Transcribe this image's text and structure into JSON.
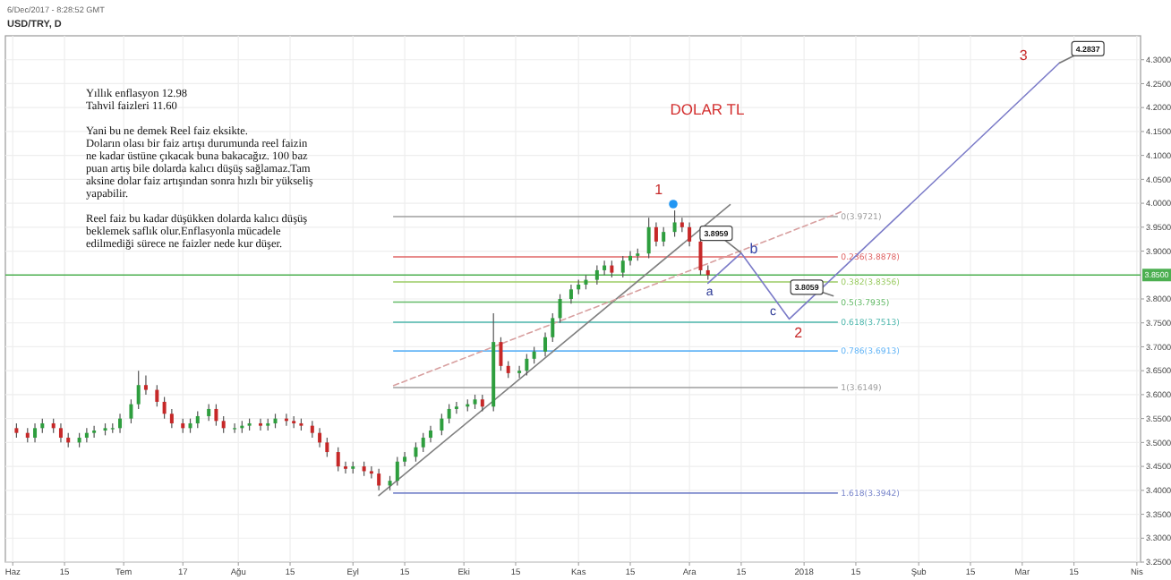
{
  "chart_data": {
    "type": "candlestick",
    "title": "DOLAR TL",
    "subtitle": "USD/TRY, D",
    "x": [
      "2017-06-02",
      "2017-06-05",
      "2017-06-07",
      "2017-06-09",
      "2017-06-12",
      "2017-06-14",
      "2017-06-16",
      "2017-06-19",
      "2017-06-21",
      "2017-06-23",
      "2017-06-26",
      "2017-06-28",
      "2017-06-30",
      "2017-07-03",
      "2017-07-05",
      "2017-07-07",
      "2017-07-10",
      "2017-07-12",
      "2017-07-14",
      "2017-07-17",
      "2017-07-19",
      "2017-07-21",
      "2017-07-24",
      "2017-07-26",
      "2017-07-28",
      "2017-07-31",
      "2017-08-02",
      "2017-08-04",
      "2017-08-07",
      "2017-08-09",
      "2017-08-11",
      "2017-08-14",
      "2017-08-16",
      "2017-08-18",
      "2017-08-21",
      "2017-08-23",
      "2017-08-25",
      "2017-08-28",
      "2017-08-30",
      "2017-09-01",
      "2017-09-04",
      "2017-09-06",
      "2017-09-08",
      "2017-09-11",
      "2017-09-13",
      "2017-09-15",
      "2017-09-18",
      "2017-09-20",
      "2017-09-22",
      "2017-09-25",
      "2017-09-27",
      "2017-09-29",
      "2017-10-02",
      "2017-10-04",
      "2017-10-06",
      "2017-10-09",
      "2017-10-11",
      "2017-10-13",
      "2017-10-16",
      "2017-10-18",
      "2017-10-20",
      "2017-10-23",
      "2017-10-25",
      "2017-10-27",
      "2017-10-30",
      "2017-11-01",
      "2017-11-03",
      "2017-11-06",
      "2017-11-08",
      "2017-11-10",
      "2017-11-13",
      "2017-11-15",
      "2017-11-17",
      "2017-11-20",
      "2017-11-22",
      "2017-11-24",
      "2017-11-27",
      "2017-11-29",
      "2017-12-01",
      "2017-12-04",
      "2017-12-06"
    ],
    "ohlc": [
      [
        3.53,
        3.54,
        3.51,
        3.52
      ],
      [
        3.52,
        3.53,
        3.5,
        3.51
      ],
      [
        3.51,
        3.54,
        3.5,
        3.53
      ],
      [
        3.53,
        3.55,
        3.52,
        3.54
      ],
      [
        3.54,
        3.55,
        3.52,
        3.53
      ],
      [
        3.53,
        3.54,
        3.5,
        3.51
      ],
      [
        3.51,
        3.52,
        3.49,
        3.5
      ],
      [
        3.5,
        3.52,
        3.49,
        3.51
      ],
      [
        3.51,
        3.53,
        3.5,
        3.52
      ],
      [
        3.52,
        3.535,
        3.51,
        3.525
      ],
      [
        3.525,
        3.54,
        3.515,
        3.53
      ],
      [
        3.53,
        3.54,
        3.52,
        3.53
      ],
      [
        3.53,
        3.56,
        3.52,
        3.55
      ],
      [
        3.55,
        3.59,
        3.54,
        3.58
      ],
      [
        3.58,
        3.65,
        3.57,
        3.62
      ],
      [
        3.62,
        3.64,
        3.6,
        3.61
      ],
      [
        3.61,
        3.62,
        3.575,
        3.585
      ],
      [
        3.585,
        3.595,
        3.55,
        3.56
      ],
      [
        3.56,
        3.57,
        3.53,
        3.54
      ],
      [
        3.54,
        3.55,
        3.52,
        3.53
      ],
      [
        3.53,
        3.55,
        3.52,
        3.54
      ],
      [
        3.54,
        3.565,
        3.53,
        3.555
      ],
      [
        3.555,
        3.58,
        3.545,
        3.57
      ],
      [
        3.57,
        3.58,
        3.535,
        3.545
      ],
      [
        3.545,
        3.555,
        3.52,
        3.53
      ],
      [
        3.53,
        3.54,
        3.52,
        3.53
      ],
      [
        3.53,
        3.545,
        3.52,
        3.535
      ],
      [
        3.535,
        3.55,
        3.525,
        3.54
      ],
      [
        3.54,
        3.55,
        3.525,
        3.535
      ],
      [
        3.535,
        3.55,
        3.525,
        3.54
      ],
      [
        3.54,
        3.56,
        3.53,
        3.55
      ],
      [
        3.55,
        3.56,
        3.535,
        3.545
      ],
      [
        3.545,
        3.555,
        3.53,
        3.54
      ],
      [
        3.54,
        3.55,
        3.525,
        3.535
      ],
      [
        3.535,
        3.545,
        3.51,
        3.52
      ],
      [
        3.52,
        3.53,
        3.49,
        3.5
      ],
      [
        3.5,
        3.51,
        3.47,
        3.48
      ],
      [
        3.48,
        3.49,
        3.44,
        3.45
      ],
      [
        3.45,
        3.46,
        3.435,
        3.445
      ],
      [
        3.445,
        3.46,
        3.435,
        3.45
      ],
      [
        3.45,
        3.46,
        3.43,
        3.44
      ],
      [
        3.44,
        3.45,
        3.425,
        3.435
      ],
      [
        3.435,
        3.445,
        3.4,
        3.41
      ],
      [
        3.41,
        3.43,
        3.4,
        3.42
      ],
      [
        3.42,
        3.47,
        3.41,
        3.46
      ],
      [
        3.46,
        3.48,
        3.45,
        3.47
      ],
      [
        3.47,
        3.5,
        3.46,
        3.49
      ],
      [
        3.49,
        3.52,
        3.48,
        3.51
      ],
      [
        3.51,
        3.535,
        3.5,
        3.525
      ],
      [
        3.525,
        3.56,
        3.515,
        3.55
      ],
      [
        3.55,
        3.58,
        3.54,
        3.57
      ],
      [
        3.57,
        3.585,
        3.56,
        3.575
      ],
      [
        3.575,
        3.59,
        3.565,
        3.58
      ],
      [
        3.58,
        3.6,
        3.57,
        3.59
      ],
      [
        3.59,
        3.6,
        3.565,
        3.575
      ],
      [
        3.575,
        3.77,
        3.565,
        3.71
      ],
      [
        3.71,
        3.72,
        3.65,
        3.66
      ],
      [
        3.66,
        3.67,
        3.635,
        3.645
      ],
      [
        3.645,
        3.66,
        3.635,
        3.65
      ],
      [
        3.65,
        3.685,
        3.64,
        3.675
      ],
      [
        3.675,
        3.7,
        3.665,
        3.69
      ],
      [
        3.69,
        3.73,
        3.68,
        3.72
      ],
      [
        3.72,
        3.77,
        3.71,
        3.76
      ],
      [
        3.76,
        3.81,
        3.75,
        3.8
      ],
      [
        3.8,
        3.83,
        3.79,
        3.82
      ],
      [
        3.82,
        3.84,
        3.81,
        3.83
      ],
      [
        3.83,
        3.85,
        3.82,
        3.84
      ],
      [
        3.84,
        3.87,
        3.83,
        3.86
      ],
      [
        3.86,
        3.88,
        3.85,
        3.87
      ],
      [
        3.87,
        3.88,
        3.845,
        3.855
      ],
      [
        3.855,
        3.89,
        3.845,
        3.88
      ],
      [
        3.88,
        3.9,
        3.87,
        3.89
      ],
      [
        3.89,
        3.905,
        3.88,
        3.895
      ],
      [
        3.895,
        3.97,
        3.885,
        3.95
      ],
      [
        3.95,
        3.96,
        3.91,
        3.92
      ],
      [
        3.92,
        3.95,
        3.91,
        3.94
      ],
      [
        3.94,
        3.985,
        3.93,
        3.96
      ],
      [
        3.96,
        3.97,
        3.94,
        3.95
      ],
      [
        3.95,
        3.96,
        3.91,
        3.92
      ],
      [
        3.92,
        3.93,
        3.85,
        3.86
      ],
      [
        3.86,
        3.87,
        3.84,
        3.85
      ]
    ],
    "series": [
      {
        "type": "line",
        "name": "0(3.9721)",
        "color": "#9e9e9e",
        "x": [
          "2017-09-12",
          "2018-01-10"
        ],
        "values": [
          3.9721,
          3.9721
        ]
      },
      {
        "type": "line",
        "name": "0.236(3.8878)",
        "color": "#e06666",
        "x": [
          "2017-09-12",
          "2018-01-10"
        ],
        "values": [
          3.8878,
          3.8878
        ]
      },
      {
        "type": "line",
        "name": "0.382(3.8356)",
        "color": "#9ccc65",
        "x": [
          "2017-09-12",
          "2018-01-10"
        ],
        "values": [
          3.8356,
          3.8356
        ]
      },
      {
        "type": "line",
        "name": "0.5(3.7935)",
        "color": "#66bb6a",
        "x": [
          "2017-09-12",
          "2018-01-10"
        ],
        "values": [
          3.7935,
          3.7935
        ]
      },
      {
        "type": "line",
        "name": "0.618(3.7513)",
        "color": "#4db6ac",
        "x": [
          "2017-09-12",
          "2018-01-10"
        ],
        "values": [
          3.7513,
          3.7513
        ]
      },
      {
        "type": "line",
        "name": "0.786(3.6913)",
        "color": "#64b5f6",
        "x": [
          "2017-09-12",
          "2018-01-10"
        ],
        "values": [
          3.6913,
          3.6913
        ]
      },
      {
        "type": "line",
        "name": "1(3.6149)",
        "color": "#9e9e9e",
        "x": [
          "2017-09-12",
          "2018-01-10"
        ],
        "values": [
          3.6149,
          3.6149
        ]
      },
      {
        "type": "line",
        "name": "1.618(3.3942)",
        "color": "#7986cb",
        "x": [
          "2017-09-12",
          "2018-01-10"
        ],
        "values": [
          3.3942,
          3.3942
        ]
      },
      {
        "type": "line",
        "color": "#808080",
        "x": [
          "2017-09-08",
          "2017-12-12"
        ],
        "values": [
          3.389,
          3.997
        ]
      },
      {
        "type": "line",
        "color": "#d8a0a0",
        "line_style": "dashed",
        "x": [
          "2017-09-12",
          "2018-01-11"
        ],
        "values": [
          3.619,
          3.982
        ]
      },
      {
        "type": "line",
        "color": "#7b7bc8",
        "x": [
          "2017-12-06",
          "2017-12-15",
          "2017-12-28",
          "2018-03-11"
        ],
        "values": [
          3.833,
          3.896,
          3.758,
          4.293
        ]
      }
    ],
    "annotations": [
      {
        "text": "1",
        "x": "2017-11-27",
        "y": 3.985
      },
      {
        "text": "a",
        "x": "2017-12-06",
        "y": 3.833
      },
      {
        "text": "b",
        "x": "2017-12-15",
        "y": 3.896
      },
      {
        "text": "c",
        "x": "2017-12-28",
        "y": 3.758
      },
      {
        "text": "2",
        "x": "2017-12-28",
        "y": 3.758
      },
      {
        "text": "3",
        "x": "2018-03-11",
        "y": 4.293
      },
      {
        "text": "3.8959",
        "x": "2017-12-15",
        "y": 3.896
      },
      {
        "text": "3.8059",
        "x": "2018-01-09",
        "y": 3.806
      },
      {
        "text": "4.2837",
        "x": "2018-03-11",
        "y": 4.293
      },
      "6/Dec/2017 - 8:28:52 GMT",
      "Yıllık enflasyon 12.98",
      "Tahvil faizleri 11.60",
      "Yani bu ne demek Reel faiz eksikte.",
      "Doların olası bir faiz artışı durumunda reel faizin",
      "ne kadar üstüne çıkacak buna bakacağız. 100 baz",
      "puan artış bile dolarda kalıcı düşüş sağlamaz.Tam",
      "aksine dolar faiz artışından sonra hızlı bir yükseliş",
      "yapabilir.",
      "Reel faiz bu kadar düşükken dolarda kalıcı düşüş",
      "beklemek saflık olur.Enflasyonla mücadele",
      "edilmediği sürece ne faizler nede kur düşer."
    ],
    "ref_lines": [
      {
        "axis": "y",
        "value": 3.85,
        "label": "3.8500",
        "color": "#4caf50"
      }
    ],
    "xlim": [
      "2017-05-30",
      "2018-04-02"
    ],
    "xticks": [
      {
        "value": "2017-06-01",
        "label": "Haz"
      },
      {
        "value": "2017-06-15",
        "label": "15"
      },
      {
        "value": "2017-07-01",
        "label": "Tem"
      },
      {
        "value": "2017-07-17",
        "label": "17"
      },
      {
        "value": "2017-08-01",
        "label": "Ağu"
      },
      {
        "value": "2017-08-15",
        "label": "15"
      },
      {
        "value": "2017-09-01",
        "label": "Eyl"
      },
      {
        "value": "2017-09-15",
        "label": "15"
      },
      {
        "value": "2017-10-01",
        "label": "Eki"
      },
      {
        "value": "2017-10-15",
        "label": "15"
      },
      {
        "value": "2017-11-01",
        "label": "Kas"
      },
      {
        "value": "2017-11-15",
        "label": "15"
      },
      {
        "value": "2017-12-01",
        "label": "Ara"
      },
      {
        "value": "2017-12-15",
        "label": "15"
      },
      {
        "value": "2018-01-01",
        "label": "2018"
      },
      {
        "value": "2018-01-15",
        "label": "15"
      },
      {
        "value": "2018-02-01",
        "label": "Şub"
      },
      {
        "value": "2018-02-15",
        "label": "15"
      },
      {
        "value": "2018-03-01",
        "label": "Mar"
      },
      {
        "value": "2018-03-15",
        "label": "15"
      },
      {
        "value": "2018-04-01",
        "label": "Nis"
      }
    ],
    "ylim": [
      3.25,
      4.35
    ],
    "yticks": [
      {
        "value": 3.25,
        "label": "3.2500"
      },
      {
        "value": 3.3,
        "label": "3.3000"
      },
      {
        "value": 3.35,
        "label": "3.3500"
      },
      {
        "value": 3.4,
        "label": "3.4000"
      },
      {
        "value": 3.45,
        "label": "3.4500"
      },
      {
        "value": 3.5,
        "label": "3.5000"
      },
      {
        "value": 3.55,
        "label": "3.5500"
      },
      {
        "value": 3.6,
        "label": "3.6000"
      },
      {
        "value": 3.65,
        "label": "3.6500"
      },
      {
        "value": 3.7,
        "label": "3.7000"
      },
      {
        "value": 3.75,
        "label": "3.7500"
      },
      {
        "value": 3.8,
        "label": "3.8000"
      },
      {
        "value": 3.9,
        "label": "3.9000"
      },
      {
        "value": 3.95,
        "label": "3.9500"
      },
      {
        "value": 4.0,
        "label": "4.0000"
      },
      {
        "value": 4.05,
        "label": "4.0500"
      },
      {
        "value": 4.1,
        "label": "4.1000"
      },
      {
        "value": 4.15,
        "label": "4.1500"
      },
      {
        "value": 4.2,
        "label": "4.2000"
      },
      {
        "value": 4.25,
        "label": "4.2500"
      },
      {
        "value": 4.3,
        "label": "4.3000"
      }
    ],
    "grid": true
  }
}
